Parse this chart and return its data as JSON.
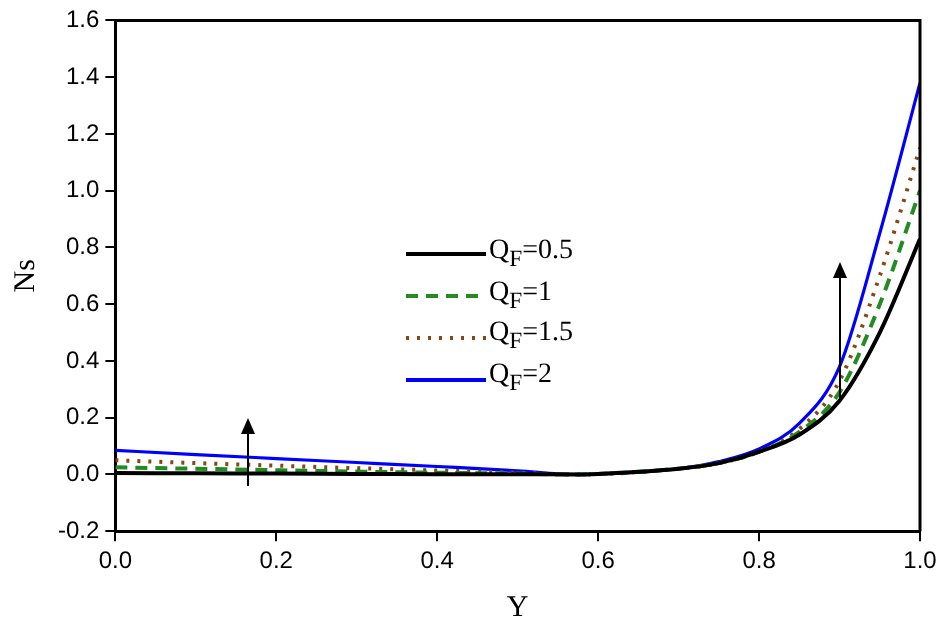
{
  "chart_data": {
    "type": "line",
    "xlabel": "Y",
    "ylabel": "Ns",
    "x": [
      0,
      0.1,
      0.2,
      0.3,
      0.4,
      0.5,
      0.57,
      0.6,
      0.7,
      0.75,
      0.8,
      0.85,
      0.9,
      0.95,
      1.0
    ],
    "series": [
      {
        "name": "Q$_{F}$=0.5",
        "color": "#000000",
        "line_style": "solid",
        "values": [
          0.005,
          0.004,
          0.003,
          0.002,
          0.001,
          0.001,
          0,
          0.002,
          0.02,
          0.04,
          0.08,
          0.14,
          0.26,
          0.5,
          0.83
        ]
      },
      {
        "name": "Q$_{F}$=1",
        "color": "#228b22",
        "line_style": "dashed",
        "values": [
          0.025,
          0.02,
          0.015,
          0.01,
          0.006,
          0.003,
          0,
          0.002,
          0.02,
          0.04,
          0.08,
          0.15,
          0.29,
          0.6,
          1.0
        ]
      },
      {
        "name": "Q$_{F}$=1.5",
        "color": "#8b4513",
        "line_style": "dotted",
        "values": [
          0.05,
          0.04,
          0.031,
          0.022,
          0.014,
          0.006,
          0,
          0.001,
          0.02,
          0.04,
          0.08,
          0.16,
          0.33,
          0.7,
          1.15
        ]
      },
      {
        "name": "Q$_{F}$=2",
        "color": "#0000ff",
        "line_style": "solid",
        "values": [
          0.085,
          0.07,
          0.056,
          0.042,
          0.028,
          0.013,
          0,
          0.001,
          0.02,
          0.045,
          0.09,
          0.18,
          0.38,
          0.85,
          1.38
        ]
      }
    ],
    "xlim": [
      0,
      1
    ],
    "ylim": [
      -0.2,
      1.6
    ],
    "xticks": [
      {
        "value": 0,
        "label": "0.0"
      },
      0.2,
      0.4,
      0.6,
      0.8,
      {
        "value": 1,
        "label": "1.0"
      }
    ],
    "yticks": [
      -0.2,
      {
        "value": 0,
        "label": "0.0"
      },
      0.2,
      0.4,
      0.6,
      0.8,
      {
        "value": 1,
        "label": "1.0"
      },
      1.2,
      1.4,
      1.6
    ],
    "grid": false,
    "legend": "center",
    "marker": "none"
  }
}
